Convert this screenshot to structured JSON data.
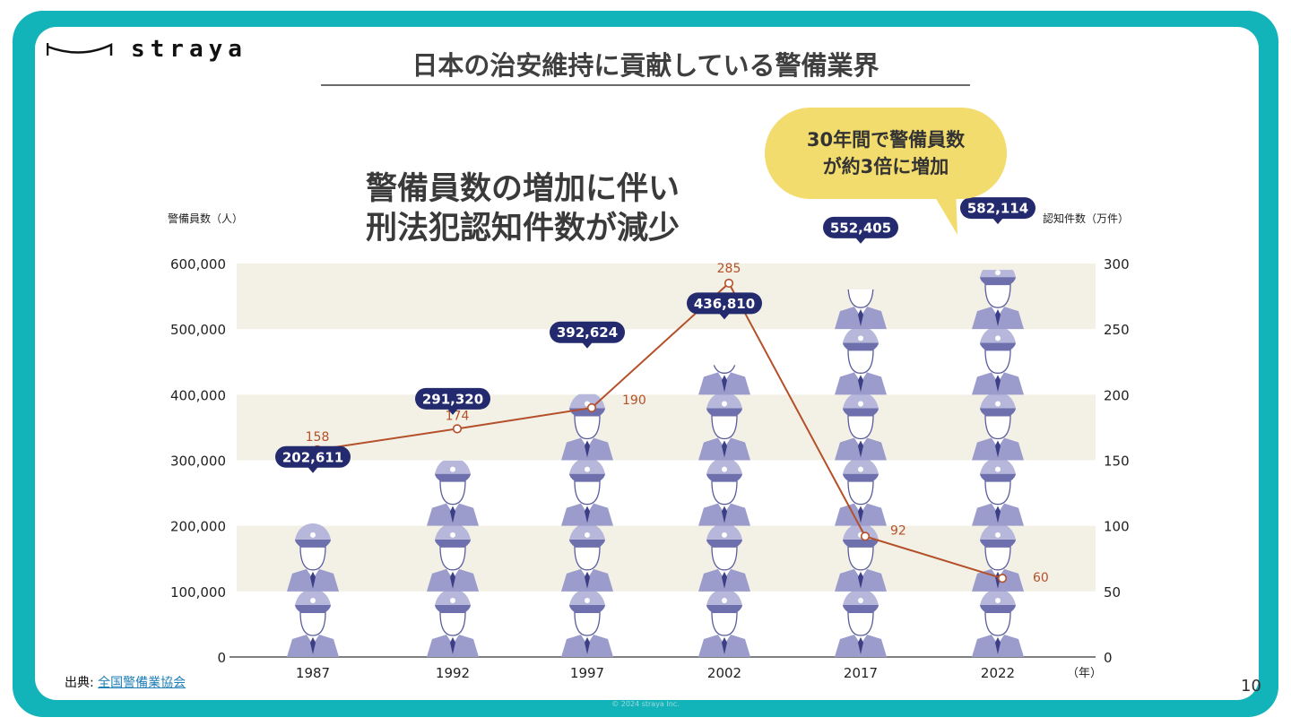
{
  "brand": {
    "name": "straya"
  },
  "slide": {
    "title": "日本の治安維持に貢献している警備業界",
    "headline_line1": "警備員数の増加に伴い",
    "headline_line2": "刑法犯認知件数が減少",
    "callout_line1": "30年間で警備員数",
    "callout_line2": "が約3倍に増加",
    "source_label": "出典:",
    "source_link": "全国警備業協会",
    "page_number": "10",
    "copyright": "© 2024 straya Inc."
  },
  "colors": {
    "frame": "#13b3ba",
    "band": "#f3f1e6",
    "badge": "#242a6e",
    "line": "#b4502a",
    "callout": "#f3dc6e",
    "guard": "#9b9ccb"
  },
  "icons": {
    "guard": "security-guard-icon",
    "logo": "straya-logo-mark"
  },
  "chart_data": {
    "type": "bar",
    "categories": [
      "1987",
      "1992",
      "1997",
      "2002",
      "2017",
      "2022"
    ],
    "x_unit": "（年）",
    "series": [
      {
        "name": "警備員数（人）",
        "axis": "left",
        "style": "pictogram-bar",
        "values": [
          202611,
          291320,
          392624,
          436810,
          552405,
          582114
        ],
        "labels": [
          "202,611",
          "291,320",
          "392,624",
          "436,810",
          "552,405",
          "582,114"
        ]
      },
      {
        "name": "認知件数（万件）",
        "axis": "right",
        "style": "line",
        "values": [
          158,
          174,
          190,
          285,
          92,
          60
        ],
        "labels": [
          "158",
          "174",
          "190",
          "285",
          "92",
          "60"
        ]
      }
    ],
    "ylabel_left": "警備員数（人）",
    "ylabel_right": "認知件数（万件）",
    "ylim_left": [
      0,
      600000
    ],
    "ylim_right": [
      0,
      300
    ],
    "yticks_left": [
      "0",
      "100,000",
      "200,000",
      "300,000",
      "400,000",
      "500,000",
      "600,000"
    ],
    "yticks_right": [
      "0",
      "50",
      "100",
      "150",
      "200",
      "250",
      "300"
    ],
    "grid": "alternating horizontal bands",
    "legend": "none"
  }
}
